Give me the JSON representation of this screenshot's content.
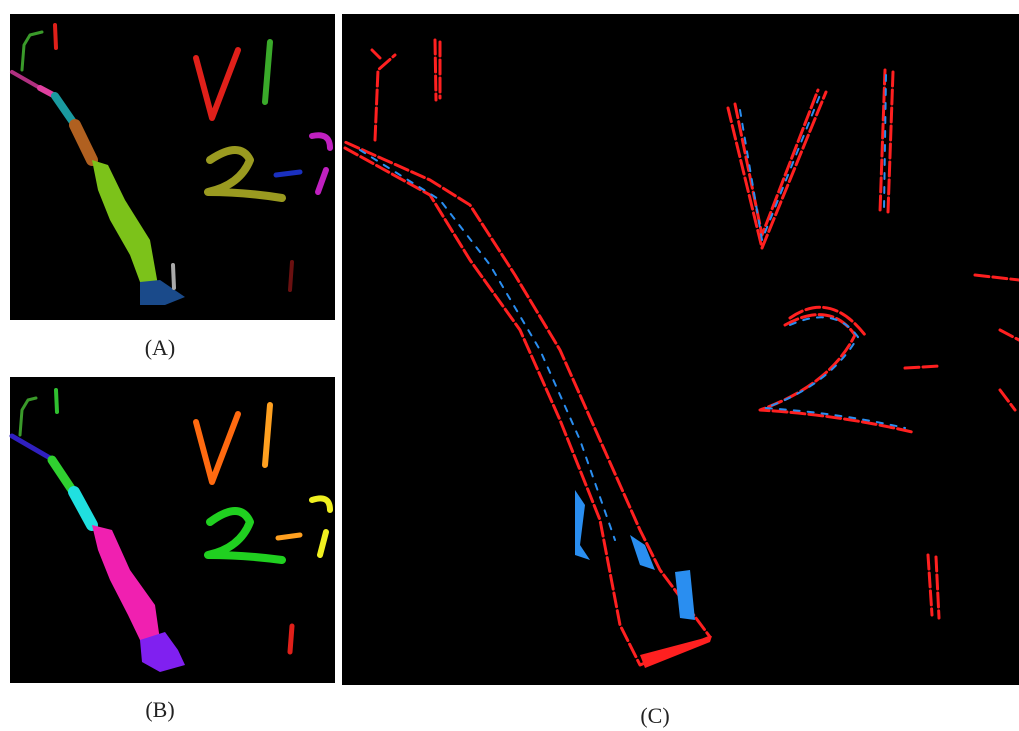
{
  "panels": [
    {
      "caption": "(A)"
    },
    {
      "caption": "(B)"
    },
    {
      "caption": "(C)"
    }
  ]
}
